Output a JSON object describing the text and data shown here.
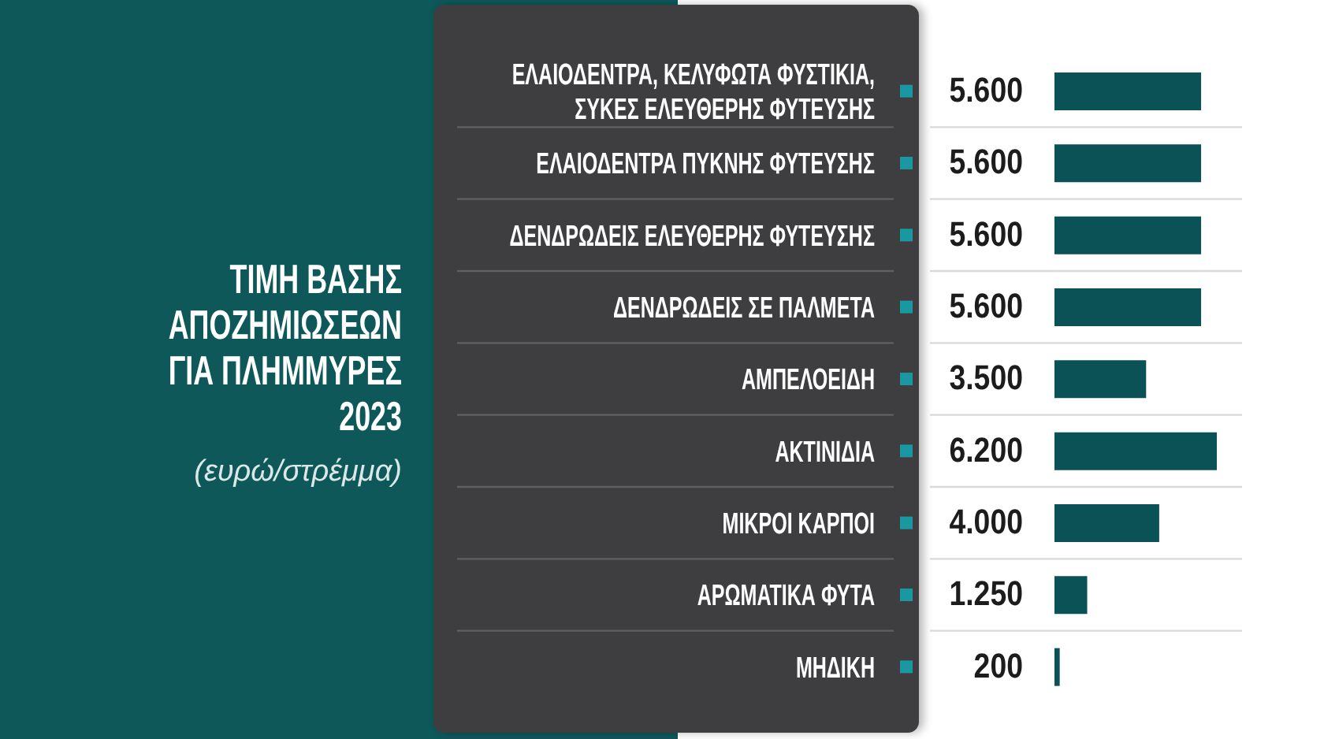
{
  "chart_data": {
    "type": "bar",
    "orientation": "horizontal",
    "title": "ΤΙΜΗ ΒΑΣΗΣ ΑΠΟΖΗΜΙΩΣΕΩΝ ΓΙΑ ΠΛΗΜΜΥΡΕΣ 2023",
    "subtitle": "(ευρώ/στρέμμα)",
    "categories": [
      "ΕΛΑΙΟΔΕΝΤΡΑ, ΚΕΛΥΦΩΤΑ ΦΥΣΤΙΚΙΑ, ΣΥΚΕΣ ΕΛΕΥΘΕΡΗΣ ΦΥΤΕΥΣΗΣ",
      "ΕΛΑΙΟΔΕΝΤΡΑ ΠΥΚΝΗΣ ΦΥΤΕΥΣΗΣ",
      "ΔΕΝΔΡΩΔΕΙΣ ΕΛΕΥΘΕΡΗΣ ΦΥΤΕΥΣΗΣ",
      "ΔΕΝΔΡΩΔΕΙΣ ΣΕ ΠΑΛΜΕΤΑ",
      "ΑΜΠΕΛΟΕΙΔΗ",
      "ΑΚΤΙΝΙΔΙΑ",
      "ΜΙΚΡΟΙ ΚΑΡΠΟΙ",
      "ΑΡΩΜΑΤΙΚΑ ΦΥΤΑ",
      "ΜΗΔΙΚΗ"
    ],
    "values": [
      5600,
      5600,
      5600,
      5600,
      3500,
      6200,
      4000,
      1250,
      200
    ],
    "value_labels": [
      "5.600",
      "5.600",
      "5.600",
      "5.600",
      "3.500",
      "6.200",
      "4.000",
      "1.250",
      "200"
    ],
    "color": "#0a5256",
    "grid": "y",
    "tick_labels": "y"
  }
}
